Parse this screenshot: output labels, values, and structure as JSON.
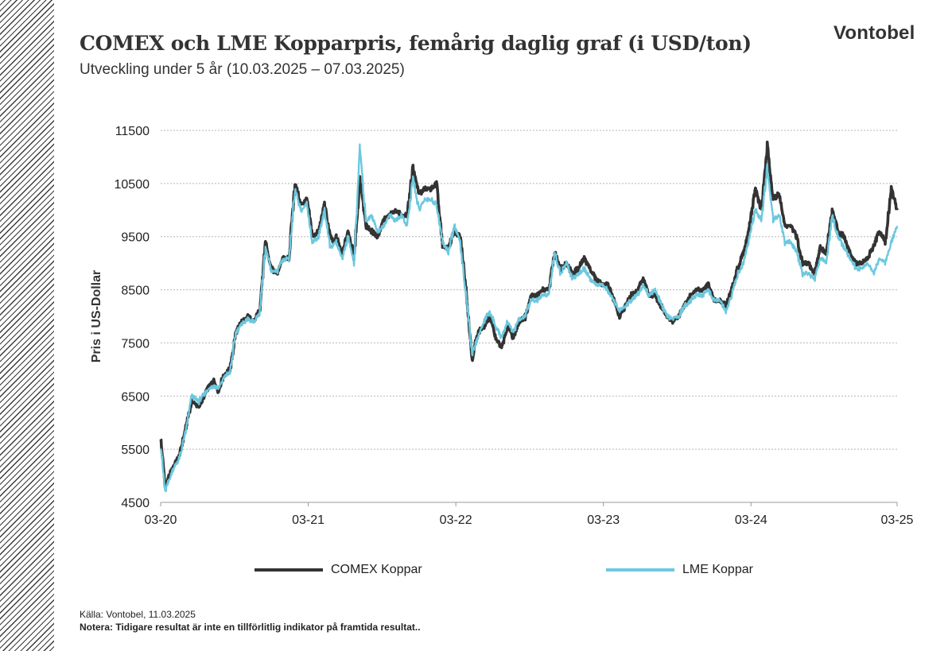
{
  "header": {
    "title": "COMEX och LME Kopparpris, femårig daglig graf (i USD/ton)",
    "subtitle": "Utveckling  under  5 år (10.03.2025  – 07.03.2025)",
    "brand": "Vontobel"
  },
  "footer": {
    "source": "Källa: Vontobel, 11.03.2025",
    "note": "Notera: Tidigare resultat är inte en tillförlitlig indikator på framtida resultat.."
  },
  "colors": {
    "comex": "#333333",
    "lme": "#6cc8de",
    "grid": "#b5b5b5"
  },
  "chart_data": {
    "type": "line",
    "title": "COMEX och LME Kopparpris, femårig daglig graf (i USD/ton)",
    "xlabel": "",
    "ylabel": "Pris i US-Dollar",
    "xlim": [
      2020.19,
      2025.18
    ],
    "ylim": [
      4500,
      11500
    ],
    "yticks": [
      4500,
      5500,
      6500,
      7500,
      8500,
      9500,
      10500,
      11500
    ],
    "ytick_labels": [
      "4500",
      "5500",
      "6500",
      "7500",
      "8500",
      "9500",
      "10500",
      "11500"
    ],
    "xticks": [
      2020.19,
      2021.19,
      2022.19,
      2023.19,
      2024.19,
      2025.18
    ],
    "xtick_labels": [
      "03-20",
      "03-21",
      "03-22",
      "03-23",
      "03-24",
      "03-25"
    ],
    "legend_position": "bottom",
    "series": [
      {
        "name": "COMEX Koppar",
        "x": [
          2020.19,
          2020.22,
          2020.25,
          2020.28,
          2020.32,
          2020.36,
          2020.4,
          2020.45,
          2020.5,
          2020.55,
          2020.58,
          2020.62,
          2020.66,
          2020.7,
          2020.74,
          2020.78,
          2020.82,
          2020.86,
          2020.9,
          2020.94,
          2020.98,
          2021.02,
          2021.06,
          2021.1,
          2021.14,
          2021.18,
          2021.22,
          2021.26,
          2021.3,
          2021.34,
          2021.36,
          2021.38,
          2021.42,
          2021.46,
          2021.5,
          2021.54,
          2021.58,
          2021.62,
          2021.66,
          2021.7,
          2021.74,
          2021.78,
          2021.82,
          2021.86,
          2021.9,
          2021.94,
          2021.98,
          2022.02,
          2022.06,
          2022.1,
          2022.14,
          2022.18,
          2022.22,
          2022.26,
          2022.3,
          2022.34,
          2022.38,
          2022.42,
          2022.46,
          2022.5,
          2022.54,
          2022.58,
          2022.62,
          2022.66,
          2022.7,
          2022.74,
          2022.78,
          2022.82,
          2022.86,
          2022.9,
          2022.94,
          2022.98,
          2023.02,
          2023.06,
          2023.1,
          2023.14,
          2023.18,
          2023.22,
          2023.26,
          2023.3,
          2023.34,
          2023.38,
          2023.42,
          2023.46,
          2023.5,
          2023.54,
          2023.58,
          2023.62,
          2023.66,
          2023.7,
          2023.74,
          2023.78,
          2023.82,
          2023.86,
          2023.9,
          2023.94,
          2023.98,
          2024.02,
          2024.06,
          2024.1,
          2024.14,
          2024.18,
          2024.22,
          2024.26,
          2024.3,
          2024.34,
          2024.38,
          2024.42,
          2024.46,
          2024.5,
          2024.54,
          2024.58,
          2024.62,
          2024.66,
          2024.7,
          2024.74,
          2024.78,
          2024.82,
          2024.86,
          2024.9,
          2024.94,
          2024.98,
          2025.02,
          2025.06,
          2025.1,
          2025.14,
          2025.18
        ],
        "values": [
          5700,
          4800,
          5000,
          5200,
          5400,
          5900,
          6400,
          6300,
          6600,
          6800,
          6600,
          6900,
          7000,
          7700,
          7900,
          8000,
          7900,
          8100,
          9400,
          8900,
          8800,
          9100,
          9100,
          10500,
          10100,
          10200,
          9500,
          9600,
          10100,
          9500,
          9400,
          9500,
          9200,
          9600,
          9100,
          10600,
          9700,
          9600,
          9500,
          9800,
          9900,
          10000,
          9900,
          9900,
          10800,
          10300,
          10400,
          10400,
          10500,
          9300,
          9300,
          9600,
          9500,
          8500,
          7200,
          7700,
          7800,
          8000,
          7600,
          7400,
          7800,
          7600,
          7900,
          8000,
          8400,
          8400,
          8500,
          8500,
          9200,
          8900,
          9000,
          8800,
          8900,
          9100,
          8900,
          8700,
          8600,
          8600,
          8300,
          8000,
          8200,
          8400,
          8500,
          8700,
          8400,
          8400,
          8200,
          8000,
          7900,
          8000,
          8200,
          8400,
          8500,
          8500,
          8600,
          8300,
          8300,
          8200,
          8500,
          8900,
          9200,
          9700,
          10400,
          10000,
          11200,
          10200,
          10300,
          9700,
          9700,
          9500,
          9000,
          9000,
          8800,
          9300,
          9200,
          10000,
          9600,
          9500,
          9200,
          9000,
          9000,
          9100,
          9300,
          9600,
          9400,
          10400,
          10000
        ],
        "color": "#333333"
      },
      {
        "name": "LME Koppar",
        "x": [
          2020.19,
          2020.22,
          2020.25,
          2020.28,
          2020.32,
          2020.36,
          2020.4,
          2020.45,
          2020.5,
          2020.55,
          2020.58,
          2020.62,
          2020.66,
          2020.7,
          2020.74,
          2020.78,
          2020.82,
          2020.86,
          2020.9,
          2020.94,
          2020.98,
          2021.02,
          2021.06,
          2021.1,
          2021.14,
          2021.18,
          2021.22,
          2021.26,
          2021.3,
          2021.34,
          2021.36,
          2021.38,
          2021.42,
          2021.46,
          2021.5,
          2021.54,
          2021.58,
          2021.62,
          2021.66,
          2021.7,
          2021.74,
          2021.78,
          2021.82,
          2021.86,
          2021.9,
          2021.94,
          2021.98,
          2022.02,
          2022.06,
          2022.1,
          2022.14,
          2022.18,
          2022.22,
          2022.26,
          2022.3,
          2022.34,
          2022.38,
          2022.42,
          2022.46,
          2022.5,
          2022.54,
          2022.58,
          2022.62,
          2022.66,
          2022.7,
          2022.74,
          2022.78,
          2022.82,
          2022.86,
          2022.9,
          2022.94,
          2022.98,
          2023.02,
          2023.06,
          2023.1,
          2023.14,
          2023.18,
          2023.22,
          2023.26,
          2023.3,
          2023.34,
          2023.38,
          2023.42,
          2023.46,
          2023.5,
          2023.54,
          2023.58,
          2023.62,
          2023.66,
          2023.7,
          2023.74,
          2023.78,
          2023.82,
          2023.86,
          2023.9,
          2023.94,
          2023.98,
          2024.02,
          2024.06,
          2024.1,
          2024.14,
          2024.18,
          2024.22,
          2024.26,
          2024.3,
          2024.34,
          2024.38,
          2024.42,
          2024.46,
          2024.5,
          2024.54,
          2024.58,
          2024.62,
          2024.66,
          2024.7,
          2024.74,
          2024.78,
          2024.82,
          2024.86,
          2024.9,
          2024.94,
          2024.98,
          2025.02,
          2025.06,
          2025.1,
          2025.14,
          2025.18
        ],
        "values": [
          5600,
          4700,
          4950,
          5150,
          5350,
          5850,
          6500,
          6400,
          6600,
          6700,
          6650,
          6850,
          6950,
          7700,
          7850,
          7950,
          7900,
          8050,
          9300,
          8850,
          8850,
          9050,
          9100,
          10400,
          10000,
          10100,
          9400,
          9500,
          10000,
          9300,
          9350,
          9400,
          9100,
          9500,
          9000,
          11200,
          9800,
          9900,
          9600,
          9700,
          9900,
          9800,
          9900,
          9700,
          10600,
          10000,
          10200,
          10200,
          10100,
          9400,
          9200,
          9700,
          9400,
          8400,
          7300,
          7600,
          7900,
          8100,
          7800,
          7600,
          7900,
          7700,
          7950,
          8000,
          8300,
          8300,
          8400,
          8400,
          9200,
          8800,
          9000,
          8700,
          8800,
          8900,
          8700,
          8600,
          8600,
          8500,
          8300,
          8100,
          8200,
          8300,
          8400,
          8600,
          8400,
          8500,
          8250,
          8000,
          7950,
          8000,
          8200,
          8300,
          8400,
          8400,
          8500,
          8300,
          8300,
          8100,
          8400,
          8800,
          9000,
          9500,
          10000,
          9800,
          10800,
          9800,
          9900,
          9400,
          9400,
          9200,
          8800,
          8800,
          8700,
          9100,
          9000,
          9900,
          9500,
          9300,
          9100,
          8900,
          8900,
          9000,
          8800,
          9100,
          9000,
          9400,
          9700
        ],
        "color": "#6cc8de"
      }
    ]
  }
}
